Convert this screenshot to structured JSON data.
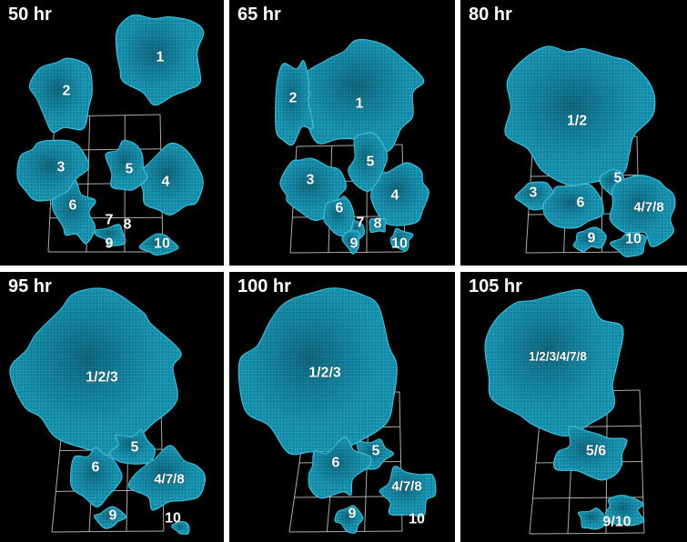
{
  "figure": {
    "type": "3d-reconstruction-time-series",
    "panel_count": 6
  },
  "colors": {
    "panel_background": "#000000",
    "frame_background": "#ffffff",
    "mesh_base": "#1295b5",
    "mesh_line": "#4fd0e8",
    "mesh_edge": "#3fc6e0",
    "grid_line": "#c9c9c9",
    "label_text": "#ffffff"
  },
  "panels": [
    {
      "time_label": "50 hr",
      "labels": [
        "1",
        "2",
        "3",
        "5",
        "4",
        "6",
        "7",
        "8",
        "9",
        "10"
      ]
    },
    {
      "time_label": "65 hr",
      "labels": [
        "2",
        "1",
        "3",
        "5",
        "4",
        "6",
        "7",
        "8",
        "9",
        "10"
      ]
    },
    {
      "time_label": "80 hr",
      "labels": [
        "1/2",
        "3",
        "5",
        "6",
        "4/7/8",
        "9",
        "10"
      ]
    },
    {
      "time_label": "95 hr",
      "labels": [
        "1/2/3",
        "5",
        "6",
        "4/7/8",
        "9",
        "10"
      ]
    },
    {
      "time_label": "100 hr",
      "labels": [
        "1/2/3",
        "5",
        "6",
        "4/7/8",
        "9",
        "10"
      ]
    },
    {
      "time_label": "105 hr",
      "labels": [
        "1/2/3/4/7/8",
        "5/6",
        "9/10"
      ]
    }
  ]
}
